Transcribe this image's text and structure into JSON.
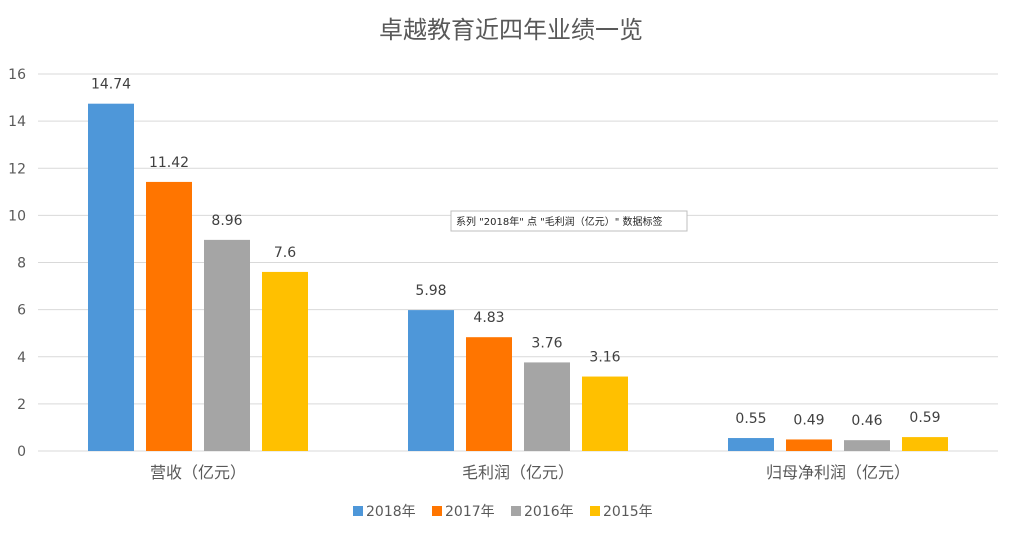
{
  "chart_data": {
    "type": "bar",
    "title": "卓越教育近四年业绩一览",
    "categories": [
      "营收（亿元）",
      "毛利润（亿元）",
      "归母净利润（亿元）"
    ],
    "series": [
      {
        "name": "2018年",
        "color": "#4e97d9",
        "values": [
          14.74,
          5.98,
          0.55
        ]
      },
      {
        "name": "2017年",
        "color": "#ff7500",
        "values": [
          11.42,
          4.83,
          0.49
        ]
      },
      {
        "name": "2016年",
        "color": "#a5a5a5",
        "values": [
          8.96,
          3.76,
          0.46
        ]
      },
      {
        "name": "2015年",
        "color": "#ffc000",
        "values": [
          7.6,
          3.16,
          0.59
        ]
      }
    ],
    "ylim": [
      0,
      16
    ],
    "yticks": [
      0,
      2,
      4,
      6,
      8,
      10,
      12,
      14,
      16
    ],
    "grid": true,
    "legend": "bottom"
  },
  "tooltip": {
    "text": "系列 \"2018年\" 点 \"毛利润（亿元）\" 数据标签"
  }
}
